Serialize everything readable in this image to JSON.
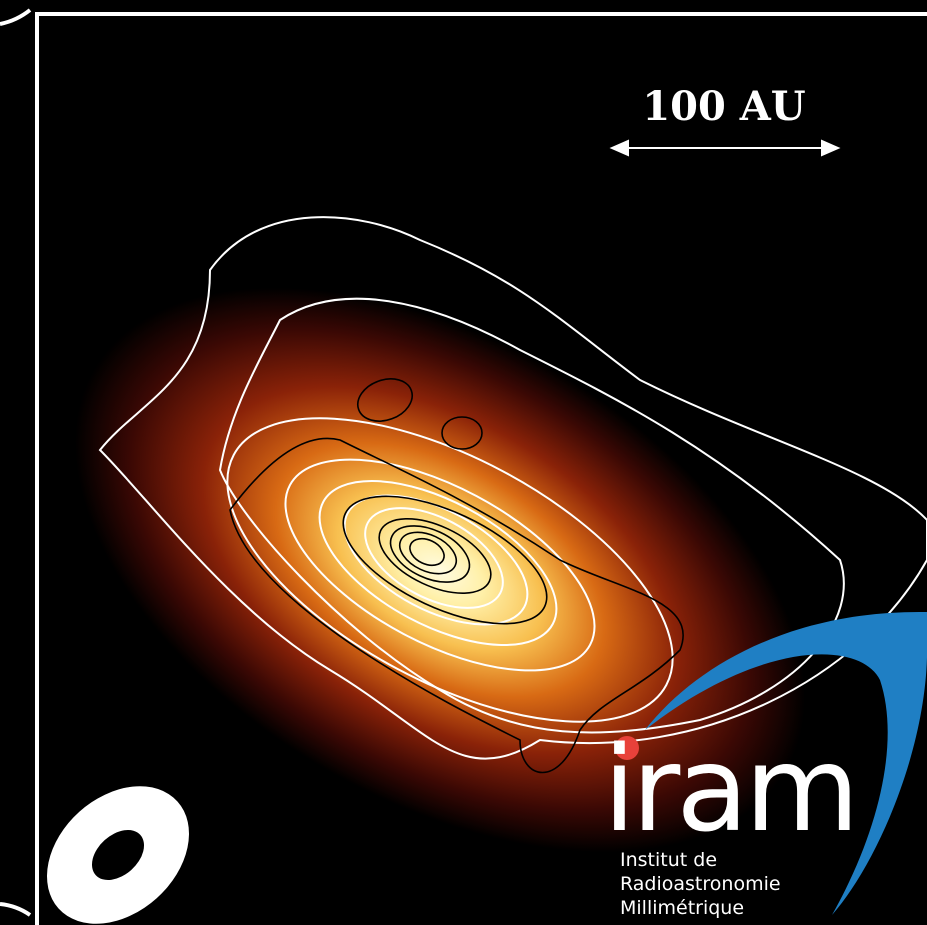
{
  "scale_bar": {
    "label": "100 AU"
  },
  "logo": {
    "name": "iram",
    "lines": [
      "Institut de",
      "Radioastronomie",
      "Millimétrique"
    ]
  }
}
